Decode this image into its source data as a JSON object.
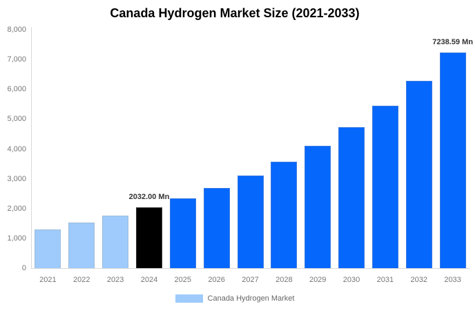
{
  "title": "Canada Hydrogen Market Size (2021-2033)",
  "legend": {
    "label": "Canada Hydrogen Market",
    "swatch_color": "#9ECBFB"
  },
  "colors": {
    "historical_bar": "#9ECBFB",
    "highlight_bar": "#000000",
    "forecast_bar": "#0667FD",
    "axis_line": "#D9D9D9",
    "tick_text": "#777777",
    "value_label_text": "#333333"
  },
  "chart_data": {
    "type": "bar",
    "title": "Canada Hydrogen Market Size (2021-2033)",
    "unit": "Mn",
    "categories": [
      "2021",
      "2022",
      "2023",
      "2024",
      "2025",
      "2026",
      "2027",
      "2028",
      "2029",
      "2030",
      "2031",
      "2032",
      "2033"
    ],
    "values": [
      1310,
      1525,
      1760,
      2032.0,
      2340,
      2695,
      3103,
      3574,
      4116,
      4739,
      5458,
      6285,
      7238.59
    ],
    "bar_colors": [
      "#9ECBFB",
      "#9ECBFB",
      "#9ECBFB",
      "#000000",
      "#0667FD",
      "#0667FD",
      "#0667FD",
      "#0667FD",
      "#0667FD",
      "#0667FD",
      "#0667FD",
      "#0667FD",
      "#0667FD"
    ],
    "point_labels": [
      "",
      "",
      "",
      "2032.00 Mn",
      "",
      "",
      "",
      "",
      "",
      "",
      "",
      "",
      "7238.59 Mn"
    ],
    "xlabel": "",
    "ylabel": "",
    "ylim": [
      0,
      8000
    ],
    "y_tick_values": [
      0,
      1000,
      2000,
      3000,
      4000,
      5000,
      6000,
      7000,
      8000
    ],
    "y_tick_labels": [
      "0",
      "1,000",
      "2,000",
      "3,000",
      "4,000",
      "5,000",
      "6,000",
      "7,000",
      "8,000"
    ],
    "grid": false,
    "legend_position": "bottom"
  }
}
